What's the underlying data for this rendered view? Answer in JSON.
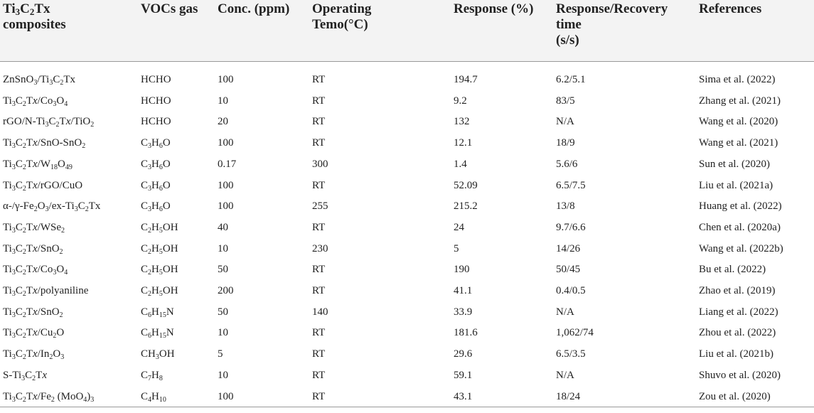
{
  "headers": [
    [
      "Ti3C2Tx",
      "composites"
    ],
    [
      "VOCs gas"
    ],
    [
      "Conc. (ppm)"
    ],
    [
      "Operating",
      "Temo(°C)"
    ],
    [
      "Response (%)"
    ],
    [
      "Response/Recovery",
      "time",
      "(s/s)"
    ],
    [
      "References"
    ]
  ],
  "rows": [
    {
      "composite": "ZnSnO3/Ti3C2Tx",
      "gas": "HCHO",
      "conc": "100",
      "temp": "RT",
      "response": "194.7",
      "time": "6.2/5.1",
      "ref": "Sima et al. (2022)"
    },
    {
      "composite": "Ti3C2Tx/Co3O4",
      "gas": "HCHO",
      "conc": "10",
      "temp": "RT",
      "response": "9.2",
      "time": "83/5",
      "ref": "Zhang et al. (2021)"
    },
    {
      "composite": "rGO/N-Ti3C2Tx/TiO2",
      "gas": "HCHO",
      "conc": "20",
      "temp": "RT",
      "response": "132",
      "time": "N/A",
      "ref": "Wang et al. (2020)"
    },
    {
      "composite": "Ti3C2Tx/SnO-SnO2",
      "gas": "C3H6O",
      "conc": "100",
      "temp": "RT",
      "response": "12.1",
      "time": "18/9",
      "ref": "Wang et al. (2021)"
    },
    {
      "composite": "Ti3C2Tx/W18O49",
      "gas": "C3H6O",
      "conc": "0.17",
      "temp": "300",
      "response": "1.4",
      "time": "5.6/6",
      "ref": "Sun et al. (2020)"
    },
    {
      "composite": "Ti3C2Tx/rGO/CuO",
      "gas": "C3H6O",
      "conc": "100",
      "temp": "RT",
      "response": "52.09",
      "time": "6.5/7.5",
      "ref": "Liu et al. (2021a)"
    },
    {
      "composite": "α-/γ-Fe2O3/ex-Ti3C2Tx",
      "gas": "C3H6O",
      "conc": "100",
      "temp": "255",
      "response": "215.2",
      "time": "13/8",
      "ref": "Huang et al. (2022)"
    },
    {
      "composite": "Ti3C2Tx/WSe2",
      "gas": "C2H5OH",
      "conc": "40",
      "temp": "RT",
      "response": "24",
      "time": "9.7/6.6",
      "ref": "Chen et al. (2020a)"
    },
    {
      "composite": "Ti3C2Tx/SnO2",
      "gas": "C2H5OH",
      "conc": "10",
      "temp": "230",
      "response": "5",
      "time": "14/26",
      "ref": "Wang et al. (2022b)"
    },
    {
      "composite": "Ti3C2Tx/Co3O4",
      "gas": "C2H5OH",
      "conc": "50",
      "temp": "RT",
      "response": "190",
      "time": "50/45",
      "ref": "Bu et al. (2022)"
    },
    {
      "composite": "Ti3C2Tx/polyaniline",
      "gas": "C2H5OH",
      "conc": "200",
      "temp": "RT",
      "response": "41.1",
      "time": "0.4/0.5",
      "ref": "Zhao et al. (2019)"
    },
    {
      "composite": "Ti3C2Tx/SnO2",
      "gas": "C6H15N",
      "conc": "50",
      "temp": "140",
      "response": "33.9",
      "time": "N/A",
      "ref": "Liang et al. (2022)"
    },
    {
      "composite": "Ti3C2Tx/Cu2O",
      "gas": "C6H15N",
      "conc": "10",
      "temp": "RT",
      "response": "181.6",
      "time": "1,062/74",
      "ref": "Zhou et al. (2022)"
    },
    {
      "composite": "Ti3C2Tx/In2O3",
      "gas": "CH3OH",
      "conc": "5",
      "temp": "RT",
      "response": "29.6",
      "time": "6.5/3.5",
      "ref": "Liu et al. (2021b)"
    },
    {
      "composite": "S-Ti3C2Tx",
      "gas": "C7H8",
      "conc": "10",
      "temp": "RT",
      "response": "59.1",
      "time": "N/A",
      "ref": "Shuvo et al. (2020)"
    },
    {
      "composite": "Ti3C2Tx/Fe2 (MoO4)3",
      "gas": "C4H10",
      "conc": "100",
      "temp": "RT",
      "response": "43.1",
      "time": "18/24",
      "ref": "Zou et al. (2020)"
    }
  ]
}
